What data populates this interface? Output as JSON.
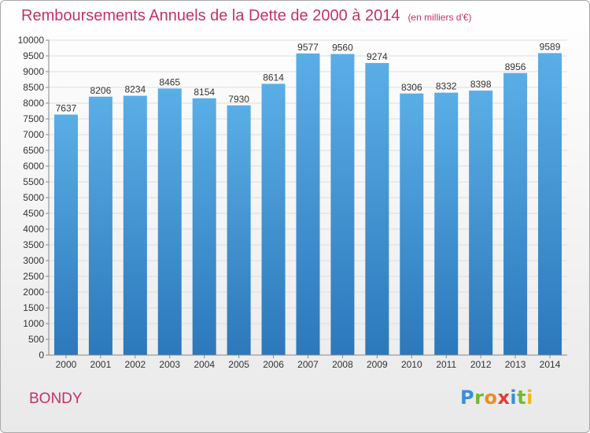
{
  "chart_data": {
    "type": "bar",
    "title": "Remboursements Annuels de la Dette de 2000 à 2014",
    "unit_note": "(en milliers d'€)",
    "categories": [
      "2000",
      "2001",
      "2002",
      "2003",
      "2004",
      "2005",
      "2006",
      "2007",
      "2008",
      "2009",
      "2010",
      "2011",
      "2012",
      "2013",
      "2014"
    ],
    "values": [
      7637,
      8206,
      8234,
      8465,
      8154,
      7930,
      8614,
      9577,
      9560,
      9274,
      8306,
      8332,
      8398,
      8956,
      9589
    ],
    "ylim": [
      0,
      10000
    ],
    "ytick_step": 500,
    "grid": true,
    "bar_color_top": "#5aaee6",
    "bar_color_bottom": "#2c78bb",
    "title_color": "#c6306a"
  },
  "city_label": "BONDY",
  "logo": {
    "letters": [
      "P",
      "r",
      "o",
      "x",
      "i",
      "t",
      "i"
    ],
    "colors": [
      "#3a8fd6",
      "#6dbb2f",
      "#f08c1e",
      "#e03c3c",
      "#3a8fd6",
      "#6dbb2f",
      "#f2b51c"
    ]
  }
}
